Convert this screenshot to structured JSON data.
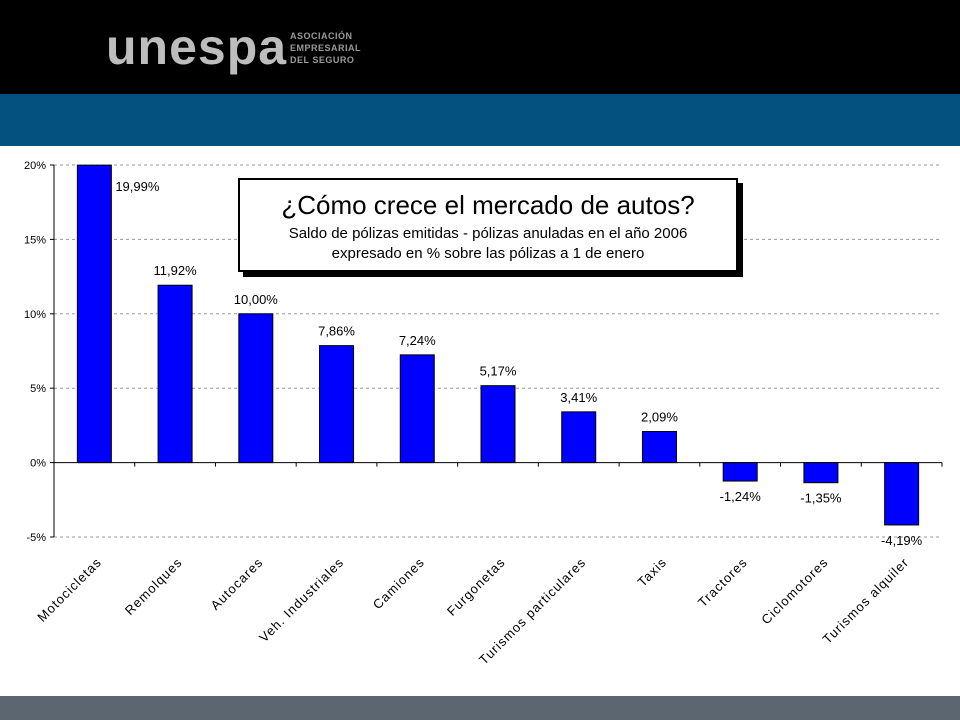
{
  "logo": {
    "wordmark": "unespa",
    "line1": "ASOCIACIÓN",
    "line2": "EMPRESARIAL",
    "line3": "DEL SEGURO"
  },
  "colors": {
    "header": "#000000",
    "band": "#04507e",
    "footer": "#5c6670",
    "bar_fill": "#0000ff",
    "bar_border": "#000000"
  },
  "chart_data": {
    "type": "bar",
    "title": "¿Cómo crece el mercado de autos?",
    "subtitle_line1": "Saldo de pólizas emitidas - pólizas anuladas en el año 2006",
    "subtitle_line2": "expresado en % sobre las pólizas a 1 de enero",
    "categories": [
      "Motocicletas",
      "Remolques",
      "Autocares",
      "Veh. Industriales",
      "Camiones",
      "Furgonetas",
      "Turismos particulares",
      "Taxis",
      "Tractores",
      "Ciclomotores",
      "Turismos alquiler"
    ],
    "values": [
      19.99,
      11.92,
      10.0,
      7.86,
      7.24,
      5.17,
      3.41,
      2.09,
      -1.24,
      -1.35,
      -4.19
    ],
    "data_labels": [
      "19,99%",
      "11,92%",
      "10,00%",
      "7,86%",
      "7,24%",
      "5,17%",
      "3,41%",
      "2,09%",
      "-1,24%",
      "-1,35%",
      "-4,19%"
    ],
    "yticks": [
      20,
      15,
      10,
      5,
      0,
      -5
    ],
    "ytick_labels": [
      "20%",
      "15%",
      "10%",
      "5%",
      "0%",
      "-5%"
    ],
    "ylim": [
      -5,
      20
    ],
    "grid": true,
    "legend": "none"
  }
}
